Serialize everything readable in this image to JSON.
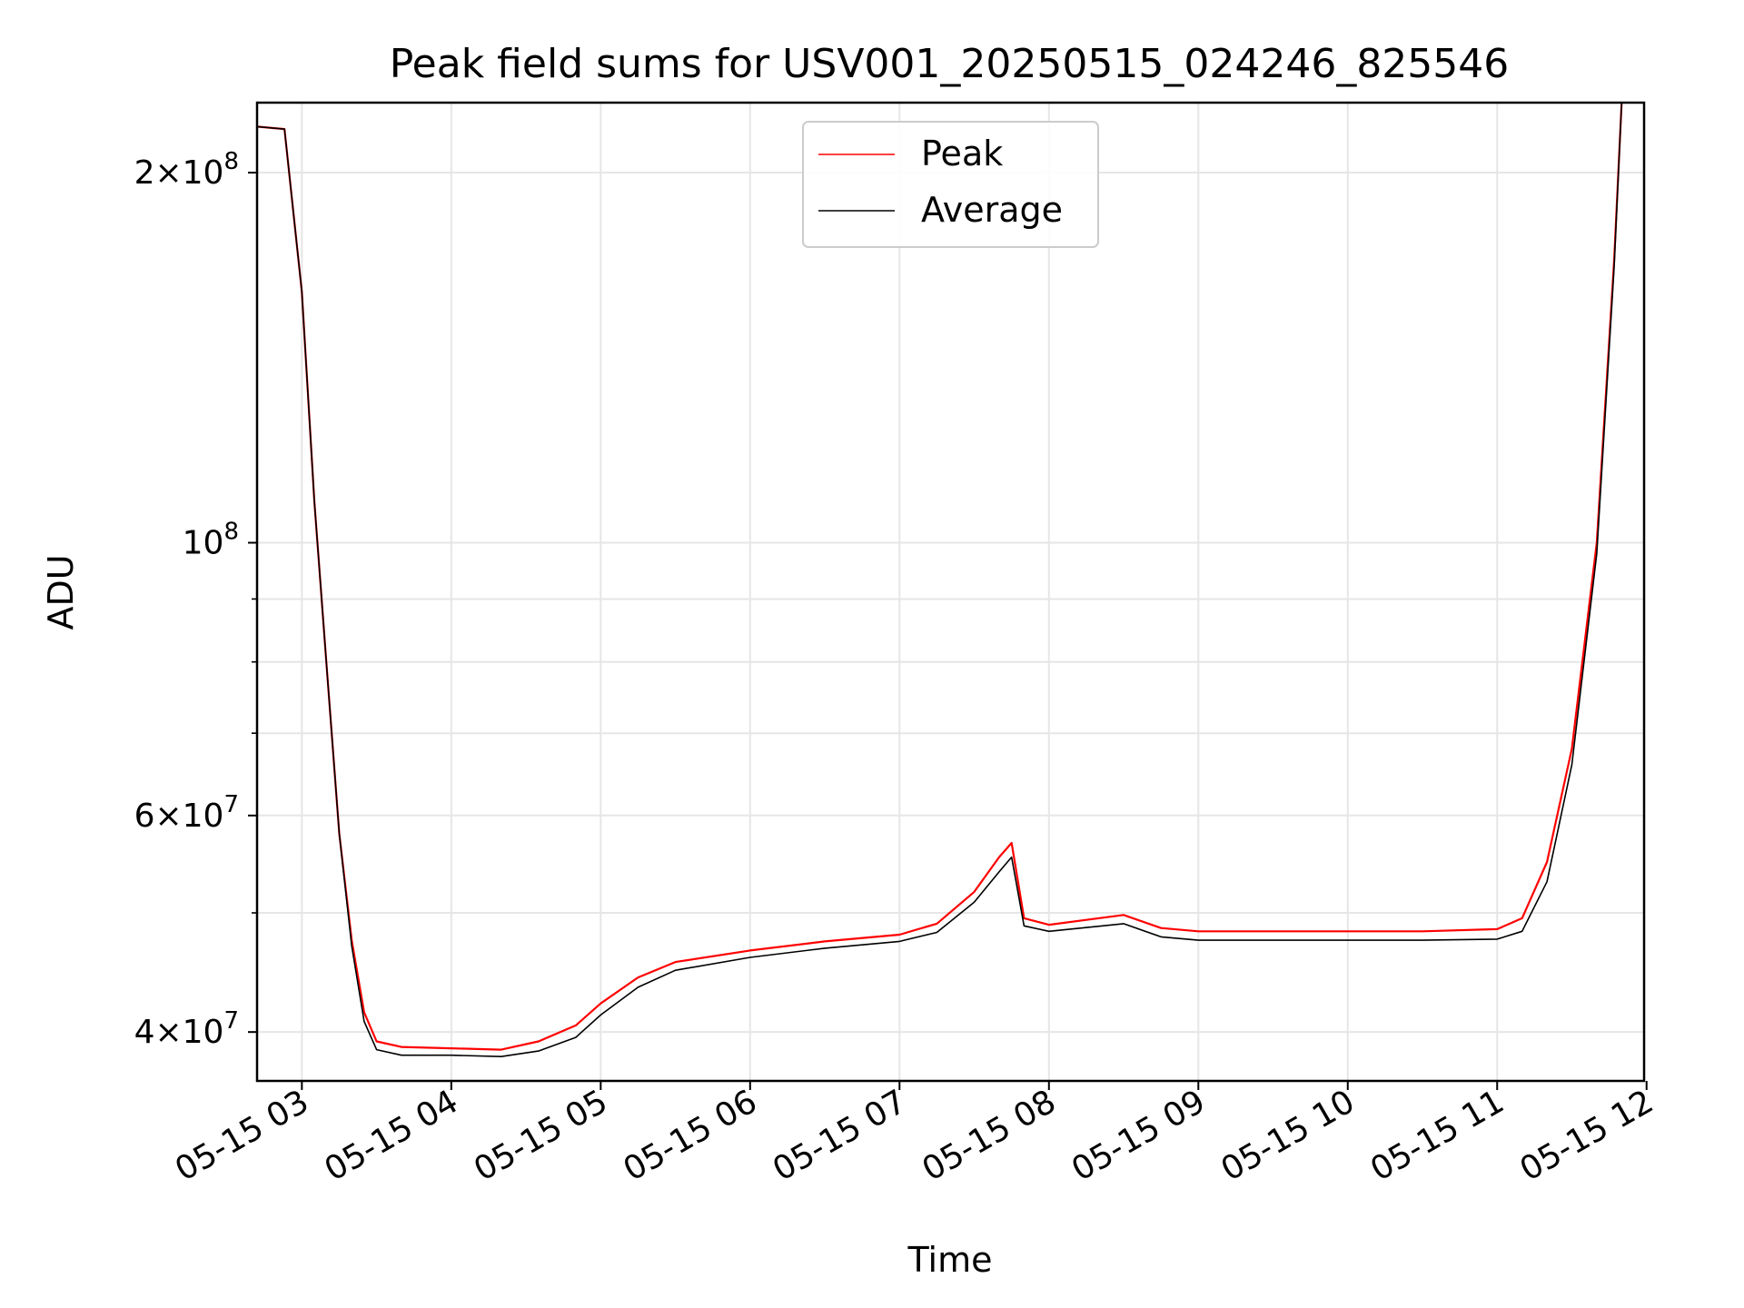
{
  "chart_data": {
    "type": "line",
    "title": "Peak field sums for USV001_20250515_024246_825546",
    "xlabel": "Time",
    "ylabel": "ADU",
    "y_scale": "log",
    "ylim": [
      36500000,
      228000000
    ],
    "xlim": [
      "2025-05-15 02:42",
      "2025-05-15 11:59"
    ],
    "grid": true,
    "legend_position": "upper center",
    "x_ticks": [
      {
        "value": "2025-05-15 03:00",
        "label": "05-15 03"
      },
      {
        "value": "2025-05-15 04:00",
        "label": "05-15 04"
      },
      {
        "value": "2025-05-15 05:00",
        "label": "05-15 05"
      },
      {
        "value": "2025-05-15 06:00",
        "label": "05-15 06"
      },
      {
        "value": "2025-05-15 07:00",
        "label": "05-15 07"
      },
      {
        "value": "2025-05-15 08:00",
        "label": "05-15 08"
      },
      {
        "value": "2025-05-15 09:00",
        "label": "05-15 09"
      },
      {
        "value": "2025-05-15 10:00",
        "label": "05-15 10"
      },
      {
        "value": "2025-05-15 11:00",
        "label": "05-15 11"
      },
      {
        "value": "2025-05-15 12:00",
        "label": "05-15 12"
      }
    ],
    "y_major_ticks": [
      {
        "value": 40000000,
        "mantissa": "4",
        "exp": "7"
      },
      {
        "value": 60000000,
        "mantissa": "6",
        "exp": "7"
      },
      {
        "value": 100000000,
        "mantissa": "",
        "exp": "8"
      },
      {
        "value": 200000000,
        "mantissa": "2",
        "exp": "8"
      }
    ],
    "y_minor_ticks": [
      50000000,
      70000000,
      80000000,
      90000000
    ],
    "series": [
      {
        "name": "Peak",
        "color": "#ff0000",
        "x": [
          "2025-05-15 02:42",
          "2025-05-15 02:53",
          "2025-05-15 03:00",
          "2025-05-15 03:05",
          "2025-05-15 03:10",
          "2025-05-15 03:15",
          "2025-05-15 03:20",
          "2025-05-15 03:25",
          "2025-05-15 03:30",
          "2025-05-15 03:40",
          "2025-05-15 04:00",
          "2025-05-15 04:20",
          "2025-05-15 04:35",
          "2025-05-15 04:50",
          "2025-05-15 05:00",
          "2025-05-15 05:15",
          "2025-05-15 05:30",
          "2025-05-15 06:00",
          "2025-05-15 06:30",
          "2025-05-15 07:00",
          "2025-05-15 07:15",
          "2025-05-15 07:30",
          "2025-05-15 07:40",
          "2025-05-15 07:45",
          "2025-05-15 07:50",
          "2025-05-15 08:00",
          "2025-05-15 08:30",
          "2025-05-15 08:45",
          "2025-05-15 09:00",
          "2025-05-15 10:00",
          "2025-05-15 10:30",
          "2025-05-15 11:00",
          "2025-05-15 11:10",
          "2025-05-15 11:20",
          "2025-05-15 11:30",
          "2025-05-15 11:40",
          "2025-05-15 11:47",
          "2025-05-15 11:50"
        ],
        "y": [
          218000000,
          217000000,
          160000000,
          108000000,
          79000000,
          58000000,
          47500000,
          41500000,
          39300000,
          38900000,
          38800000,
          38700000,
          39300000,
          40500000,
          42200000,
          44300000,
          45600000,
          46600000,
          47400000,
          48000000,
          49000000,
          52000000,
          55500000,
          57000000,
          49500000,
          48900000,
          49800000,
          48600000,
          48300000,
          48300000,
          48300000,
          48500000,
          49500000,
          55000000,
          68000000,
          100000000,
          170000000,
          228000000
        ]
      },
      {
        "name": "Average",
        "color": "#000000",
        "x": [
          "2025-05-15 02:42",
          "2025-05-15 02:53",
          "2025-05-15 03:00",
          "2025-05-15 03:05",
          "2025-05-15 03:10",
          "2025-05-15 03:15",
          "2025-05-15 03:20",
          "2025-05-15 03:25",
          "2025-05-15 03:30",
          "2025-05-15 03:40",
          "2025-05-15 04:00",
          "2025-05-15 04:20",
          "2025-05-15 04:35",
          "2025-05-15 04:50",
          "2025-05-15 05:00",
          "2025-05-15 05:15",
          "2025-05-15 05:30",
          "2025-05-15 06:00",
          "2025-05-15 06:30",
          "2025-05-15 07:00",
          "2025-05-15 07:15",
          "2025-05-15 07:30",
          "2025-05-15 07:40",
          "2025-05-15 07:45",
          "2025-05-15 07:50",
          "2025-05-15 08:00",
          "2025-05-15 08:30",
          "2025-05-15 08:45",
          "2025-05-15 09:00",
          "2025-05-15 10:00",
          "2025-05-15 10:30",
          "2025-05-15 11:00",
          "2025-05-15 11:10",
          "2025-05-15 11:20",
          "2025-05-15 11:30",
          "2025-05-15 11:40",
          "2025-05-15 11:47",
          "2025-05-15 11:50"
        ],
        "y": [
          218000000,
          217000000,
          160000000,
          108000000,
          79000000,
          58000000,
          47000000,
          40800000,
          38700000,
          38300000,
          38300000,
          38200000,
          38600000,
          39600000,
          41300000,
          43500000,
          44900000,
          46000000,
          46800000,
          47400000,
          48200000,
          51000000,
          54000000,
          55500000,
          48800000,
          48300000,
          49000000,
          47800000,
          47500000,
          47500000,
          47500000,
          47600000,
          48300000,
          53000000,
          66000000,
          98000000,
          168000000,
          228000000
        ]
      }
    ]
  }
}
